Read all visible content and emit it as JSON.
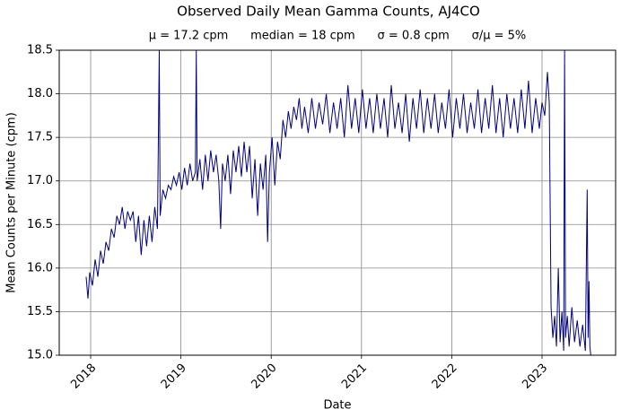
{
  "chart_data": {
    "type": "line",
    "title": "Observed Daily Mean Gamma Counts, AJ4CO",
    "subtitle": "μ = 17.2 cpm      median = 18 cpm      σ = 0.8 cpm      σ/μ = 5%",
    "xlabel": "Date",
    "ylabel": "Mean Counts per Minute (cpm)",
    "color": "#000080",
    "grid": true,
    "xlim": [
      2017.652,
      2023.815
    ],
    "xticks": [
      2018,
      2019,
      2020,
      2021,
      2022,
      2023
    ],
    "ylim": [
      15,
      18.5
    ],
    "yticks": [
      {
        "value": 15,
        "label": "15.0"
      },
      {
        "value": 15.5,
        "label": "15.5"
      },
      {
        "value": 16,
        "label": "16.0"
      },
      {
        "value": 16.5,
        "label": "16.5"
      },
      {
        "value": 17,
        "label": "17.0"
      },
      {
        "value": 17.5,
        "label": "17.5"
      },
      {
        "value": 18,
        "label": "18.0"
      },
      {
        "value": 18.5,
        "label": "18.5"
      }
    ],
    "x": [
      2017.95,
      2017.97,
      2017.99,
      2018.02,
      2018.05,
      2018.08,
      2018.11,
      2018.14,
      2018.17,
      2018.2,
      2018.23,
      2018.26,
      2018.29,
      2018.32,
      2018.35,
      2018.38,
      2018.41,
      2018.44,
      2018.47,
      2018.5,
      2018.53,
      2018.56,
      2018.59,
      2018.62,
      2018.65,
      2018.68,
      2018.71,
      2018.74,
      2018.76,
      2018.77,
      2018.8,
      2018.83,
      2018.86,
      2018.89,
      2018.92,
      2018.95,
      2018.98,
      2019.01,
      2019.04,
      2019.07,
      2019.1,
      2019.13,
      2019.16,
      2019.17,
      2019.18,
      2019.21,
      2019.24,
      2019.27,
      2019.3,
      2019.33,
      2019.36,
      2019.39,
      2019.42,
      2019.44,
      2019.46,
      2019.49,
      2019.52,
      2019.55,
      2019.58,
      2019.61,
      2019.64,
      2019.67,
      2019.7,
      2019.73,
      2019.76,
      2019.79,
      2019.82,
      2019.85,
      2019.88,
      2019.91,
      2019.94,
      2019.96,
      2019.98,
      2020.01,
      2020.04,
      2020.07,
      2020.1,
      2020.13,
      2020.16,
      2020.19,
      2020.22,
      2020.25,
      2020.28,
      2020.31,
      2020.34,
      2020.37,
      2020.41,
      2020.45,
      2020.49,
      2020.53,
      2020.57,
      2020.61,
      2020.65,
      2020.69,
      2020.73,
      2020.77,
      2020.81,
      2020.85,
      2020.89,
      2020.93,
      2020.97,
      2021.01,
      2021.05,
      2021.09,
      2021.13,
      2021.17,
      2021.21,
      2021.25,
      2021.29,
      2021.33,
      2021.37,
      2021.41,
      2021.45,
      2021.49,
      2021.53,
      2021.57,
      2021.61,
      2021.65,
      2021.69,
      2021.73,
      2021.77,
      2021.81,
      2021.85,
      2021.89,
      2021.93,
      2021.97,
      2022.01,
      2022.05,
      2022.09,
      2022.13,
      2022.17,
      2022.21,
      2022.25,
      2022.29,
      2022.33,
      2022.37,
      2022.41,
      2022.45,
      2022.49,
      2022.53,
      2022.57,
      2022.61,
      2022.65,
      2022.69,
      2022.73,
      2022.77,
      2022.81,
      2022.85,
      2022.89,
      2022.93,
      2022.97,
      2023.0,
      2023.03,
      2023.06,
      2023.08,
      2023.1,
      2023.12,
      2023.14,
      2023.16,
      2023.18,
      2023.2,
      2023.22,
      2023.24,
      2023.25,
      2023.26,
      2023.28,
      2023.3,
      2023.33,
      2023.36,
      2023.39,
      2023.42,
      2023.45,
      2023.48,
      2023.5,
      2023.51,
      2023.52,
      2023.53,
      2023.54
    ],
    "values": [
      15.9,
      15.65,
      15.95,
      15.8,
      16.1,
      15.9,
      16.2,
      16.05,
      16.3,
      16.2,
      16.45,
      16.35,
      16.6,
      16.5,
      16.7,
      16.45,
      16.65,
      16.55,
      16.65,
      16.3,
      16.6,
      16.15,
      16.55,
      16.25,
      16.6,
      16.3,
      16.7,
      16.45,
      18.5,
      16.6,
      16.9,
      16.8,
      16.95,
      16.9,
      17.05,
      16.95,
      17.1,
      16.9,
      17.15,
      16.95,
      17.2,
      17.0,
      17.1,
      18.5,
      17.0,
      17.25,
      16.9,
      17.3,
      17.0,
      17.35,
      17.1,
      17.3,
      17.0,
      16.45,
      17.2,
      17.0,
      17.3,
      16.85,
      17.35,
      17.1,
      17.4,
      17.05,
      17.45,
      17.1,
      17.4,
      16.8,
      17.25,
      16.6,
      17.2,
      16.9,
      17.3,
      16.3,
      17.1,
      17.5,
      16.95,
      17.45,
      17.25,
      17.7,
      17.5,
      17.8,
      17.6,
      17.85,
      17.7,
      17.95,
      17.6,
      17.85,
      17.55,
      17.95,
      17.6,
      17.9,
      17.65,
      18.0,
      17.55,
      17.9,
      17.6,
      17.95,
      17.5,
      18.1,
      17.6,
      17.95,
      17.55,
      18.05,
      17.6,
      17.95,
      17.55,
      18.0,
      17.6,
      17.95,
      17.5,
      18.1,
      17.6,
      17.9,
      17.55,
      18.0,
      17.45,
      17.95,
      17.6,
      18.05,
      17.55,
      17.95,
      17.6,
      18.0,
      17.55,
      17.9,
      17.6,
      18.05,
      17.5,
      17.95,
      17.6,
      18.0,
      17.55,
      17.9,
      17.6,
      18.05,
      17.55,
      17.95,
      17.6,
      18.1,
      17.55,
      17.95,
      17.5,
      18.0,
      17.6,
      17.95,
      17.55,
      18.05,
      17.6,
      18.15,
      17.55,
      17.95,
      17.6,
      17.9,
      17.75,
      18.25,
      17.9,
      15.55,
      15.2,
      15.45,
      15.1,
      16.0,
      15.15,
      15.5,
      15.05,
      18.5,
      15.2,
      15.45,
      15.1,
      15.55,
      15.15,
      15.4,
      15.1,
      15.35,
      15.05,
      16.9,
      15.2,
      15.85,
      15.1,
      15.0
    ]
  }
}
